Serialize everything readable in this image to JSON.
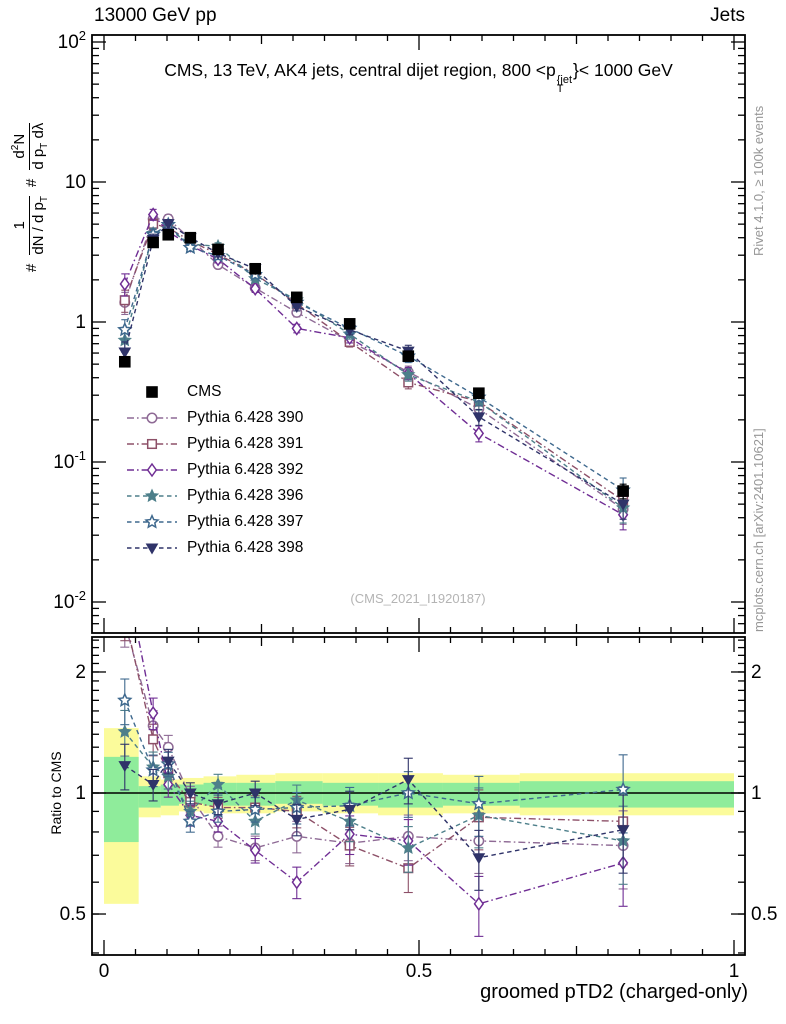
{
  "header": {
    "left": "13000 GeV pp",
    "right": "Jets"
  },
  "plot_title": {
    "pre": "CMS, 13 TeV, AK4 jets, central dijet region, 800 <p",
    "sup": "{jet",
    "sub": "T",
    "post": "}< 1000 GeV"
  },
  "ylabel_main": {
    "hash1": "#",
    "f1_num": "1",
    "f1_den": "dN / d p",
    "f1_den_sub": "T",
    "hash2": "#",
    "f2_num_a": "d",
    "f2_num_sup": "2",
    "f2_num_b": "N",
    "f2_den_a": "d p",
    "f2_den_sub": "T",
    "f2_den_b": " dλ"
  },
  "side_notes": {
    "rivet": "Rivet 4.1.0, ≥ 100k events",
    "mcplots": "mcplots.cern.ch [arXiv:2401.10621]"
  },
  "watermark": "(CMS_2021_I1920187)",
  "ratio_ylabel": "Ratio to CMS",
  "xlabel": "groomed pTD2 (charged-only)",
  "chart_data": {
    "type": "line",
    "title": "CMS, 13 TeV, AK4 jets, central dijet region, 800 < pT{jet} < 1000 GeV",
    "x_axis": {
      "min": -0.019,
      "max": 1.0175,
      "majors": [
        {
          "v": 0,
          "label": "0"
        },
        {
          "v": 0.5,
          "label": "0.5"
        },
        {
          "v": 1,
          "label": "1"
        }
      ],
      "minor_step": 0.05
    },
    "y_main_axis": {
      "scale": "log",
      "min": 0.0062,
      "max": 112,
      "majors": [
        {
          "v": 100,
          "t": "10",
          "e": "2"
        },
        {
          "v": 10,
          "t": "10",
          "e": ""
        },
        {
          "v": 1,
          "t": "1",
          "e": ""
        },
        {
          "v": 0.1,
          "t": "10",
          "e": "-1"
        },
        {
          "v": 0.01,
          "t": "10",
          "e": "-2"
        }
      ]
    },
    "y_ratio_axis": {
      "scale": "log",
      "min": 0.395,
      "max": 2.44,
      "majors": [
        {
          "v": 2,
          "label": "2"
        },
        {
          "v": 1,
          "label": "1"
        },
        {
          "v": 0.5,
          "label": "0.5"
        }
      ],
      "minor_from": 0.4,
      "minor_to": 2.4,
      "minor_step": 0.1
    },
    "x": [
      0.033,
      0.078,
      0.102,
      0.137,
      0.181,
      0.24,
      0.306,
      0.39,
      0.483,
      0.595,
      0.824
    ],
    "series": [
      {
        "name": "Pythia 6.428 390",
        "marker": "circle",
        "fill": false,
        "color": "#8e6a95",
        "line": "dashdot",
        "values": [
          1.38,
          5.44,
          5.46,
          3.92,
          2.57,
          1.75,
          1.17,
          0.73,
          0.44,
          0.24,
          0.046
        ],
        "ratio": [
          2.65,
          1.47,
          1.3,
          0.98,
          0.78,
          0.73,
          0.78,
          0.75,
          0.78,
          0.76,
          0.74
        ]
      },
      {
        "name": "Pythia 6.428 391",
        "marker": "square",
        "fill": false,
        "color": "#8d5068",
        "line": "dashdot",
        "values": [
          1.43,
          5.03,
          4.7,
          3.8,
          3.04,
          2.21,
          1.35,
          0.72,
          0.37,
          0.27,
          0.053
        ],
        "ratio": [
          2.75,
          1.36,
          1.12,
          0.95,
          0.92,
          0.92,
          0.9,
          0.74,
          0.65,
          0.87,
          0.85
        ]
      },
      {
        "name": "Pythia 6.428 392",
        "marker": "diamond",
        "fill": false,
        "color": "#6f2d94",
        "line": "dashdot",
        "values": [
          1.87,
          5.85,
          4.41,
          3.52,
          2.81,
          1.73,
          0.9,
          0.77,
          0.43,
          0.16,
          0.042
        ],
        "ratio": [
          3.6,
          1.58,
          1.05,
          0.88,
          0.85,
          0.72,
          0.6,
          0.79,
          0.76,
          0.53,
          0.67
        ]
      },
      {
        "name": "Pythia 6.428 396",
        "marker": "star",
        "fill": true,
        "color": "#4d7f8a",
        "line": "dashed",
        "values": [
          0.74,
          4.29,
          4.62,
          3.6,
          3.47,
          2.04,
          1.44,
          0.82,
          0.42,
          0.27,
          0.047
        ],
        "ratio": [
          1.42,
          1.16,
          1.1,
          0.9,
          1.05,
          0.85,
          0.96,
          0.85,
          0.73,
          0.88,
          0.76
        ]
      },
      {
        "name": "Pythia 6.428 397",
        "marker": "star",
        "fill": false,
        "color": "#3f698e",
        "line": "dashed",
        "values": [
          0.88,
          4.22,
          4.96,
          3.4,
          2.97,
          2.18,
          1.38,
          0.9,
          0.57,
          0.29,
          0.063
        ],
        "ratio": [
          1.7,
          1.14,
          1.18,
          0.85,
          0.9,
          0.91,
          0.92,
          0.93,
          1.0,
          0.94,
          1.02
        ]
      },
      {
        "name": "Pythia 6.428 398",
        "marker": "triangle-down",
        "fill": true,
        "color": "#2f3369",
        "line": "dashed",
        "values": [
          0.61,
          3.89,
          5.04,
          4.0,
          3.1,
          2.4,
          1.29,
          0.88,
          0.62,
          0.21,
          0.05
        ],
        "ratio": [
          1.17,
          1.05,
          1.2,
          1.0,
          0.94,
          1.0,
          0.86,
          0.91,
          1.08,
          0.69,
          0.81
        ]
      }
    ],
    "cms": {
      "name": "CMS",
      "marker": "square",
      "fill": true,
      "color": "#000000",
      "line": "none",
      "values": [
        0.52,
        3.7,
        4.2,
        4.0,
        3.3,
        2.4,
        1.5,
        0.97,
        0.57,
        0.31,
        0.062
      ],
      "rel_err": [
        0.08,
        0.05,
        0.04,
        0.04,
        0.04,
        0.04,
        0.05,
        0.05,
        0.06,
        0.08,
        0.12
      ]
    },
    "mc_rel_err_main": [
      0.18,
      0.09,
      0.07,
      0.06,
      0.06,
      0.06,
      0.07,
      0.08,
      0.1,
      0.13,
      0.22
    ],
    "mc_rel_err_ratio": [
      0.13,
      0.09,
      0.07,
      0.06,
      0.06,
      0.07,
      0.09,
      0.11,
      0.13,
      0.17,
      0.22
    ],
    "band_colors": {
      "outer": "#fbfb9b",
      "inner": "#8fec9b"
    },
    "bands": [
      {
        "x0": 0.0,
        "x1": 0.055,
        "outer": [
          0.53,
          1.45
        ],
        "inner": [
          0.755,
          1.23
        ]
      },
      {
        "x0": 0.055,
        "x1": 0.09,
        "outer": [
          0.87,
          1.1
        ],
        "inner": [
          0.92,
          1.04
        ]
      },
      {
        "x0": 0.09,
        "x1": 0.119,
        "outer": [
          0.88,
          1.08
        ],
        "inner": [
          0.93,
          1.05
        ]
      },
      {
        "x0": 0.119,
        "x1": 0.158,
        "outer": [
          0.9,
          1.09
        ],
        "inner": [
          0.94,
          1.05
        ]
      },
      {
        "x0": 0.158,
        "x1": 0.21,
        "outer": [
          0.89,
          1.1
        ],
        "inner": [
          0.93,
          1.06
        ]
      },
      {
        "x0": 0.21,
        "x1": 0.272,
        "outer": [
          0.89,
          1.11
        ],
        "inner": [
          0.93,
          1.06
        ]
      },
      {
        "x0": 0.272,
        "x1": 0.347,
        "outer": [
          0.9,
          1.12
        ],
        "inner": [
          0.94,
          1.07
        ]
      },
      {
        "x0": 0.347,
        "x1": 0.435,
        "outer": [
          0.89,
          1.12
        ],
        "inner": [
          0.93,
          1.06
        ]
      },
      {
        "x0": 0.435,
        "x1": 0.538,
        "outer": [
          0.88,
          1.12
        ],
        "inner": [
          0.92,
          1.06
        ]
      },
      {
        "x0": 0.538,
        "x1": 0.66,
        "outer": [
          0.89,
          1.11
        ],
        "inner": [
          0.93,
          1.06
        ]
      },
      {
        "x0": 0.66,
        "x1": 1.0,
        "outer": [
          0.88,
          1.12
        ],
        "inner": [
          0.92,
          1.07
        ]
      }
    ]
  }
}
